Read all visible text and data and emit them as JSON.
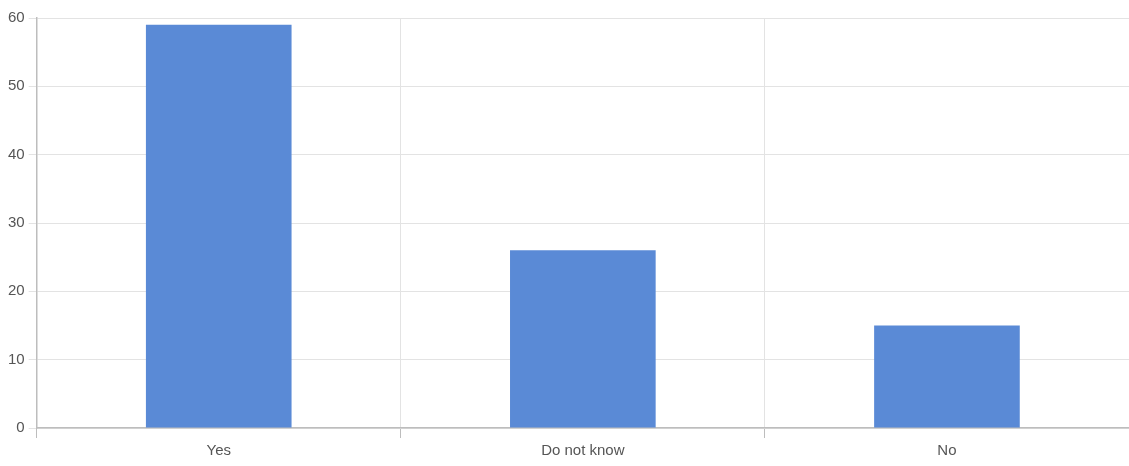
{
  "chart_data": {
    "type": "bar",
    "categories": [
      "Yes",
      "Do not know",
      "No"
    ],
    "values": [
      59,
      26,
      15
    ],
    "color": "#5a8ad6",
    "ylim": [
      0,
      60
    ],
    "yticks": [
      0,
      10,
      20,
      30,
      40,
      50,
      60
    ],
    "grid": true
  }
}
